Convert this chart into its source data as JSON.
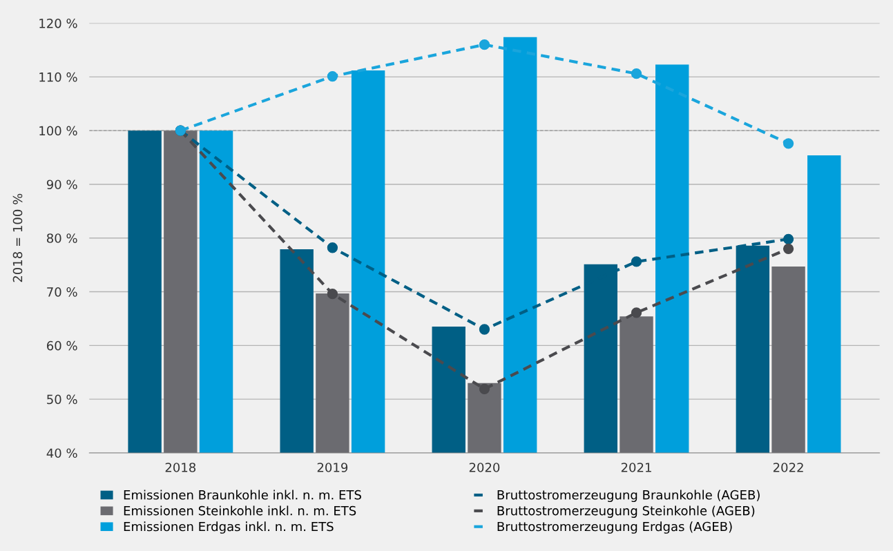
{
  "chart_data": {
    "type": "bar",
    "ylabel": "2018 = 100 %",
    "categories": [
      "2018",
      "2019",
      "2020",
      "2021",
      "2022"
    ],
    "series": [
      {
        "name": "Emissionen Braunkohle inkl. n. m. ETS",
        "color": "#005f85",
        "values": [
          100,
          77.9,
          63.5,
          75.1,
          78.6
        ]
      },
      {
        "name": "Emissionen Steinkohle inkl. n. m. ETS",
        "color": "#6b6b70",
        "values": [
          100,
          69.7,
          53,
          65.4,
          74.7
        ]
      },
      {
        "name": "Emissionen Erdgas inkl. n. m. ETS",
        "color": "#009fdc",
        "values": [
          100,
          111.2,
          117.4,
          112.3,
          95.4
        ]
      },
      {
        "name": "Bruttostromerzeugung Braunkohle (AGEB)",
        "type": "line",
        "color": "#005f85",
        "marker": "circle",
        "line_style": "dashed",
        "values": [
          100,
          78.2,
          63,
          75.6,
          79.8
        ]
      },
      {
        "name": "Bruttostromerzeugung Steinkohle (AGEB)",
        "type": "line",
        "color": "#4a4a4e",
        "marker": "circle",
        "line_style": "dashed",
        "values": [
          100,
          69.6,
          51.9,
          66.1,
          78
        ]
      },
      {
        "name": "Bruttostromerzeugung Erdgas (AGEB)",
        "type": "line",
        "color": "#1aa5dc",
        "marker": "circle",
        "line_style": "dashed",
        "values": [
          100,
          110.1,
          116,
          110.6,
          97.6
        ]
      }
    ],
    "ylim": [
      40,
      120
    ],
    "yticks": [
      {
        "value": 40,
        "label": "40 %"
      },
      {
        "value": 50,
        "label": "50 %"
      },
      {
        "value": 60,
        "label": "60 %"
      },
      {
        "value": 70,
        "label": "70 %"
      },
      {
        "value": 80,
        "label": "80 %"
      },
      {
        "value": 90,
        "label": "90 %"
      },
      {
        "value": 100,
        "label": "100 %"
      },
      {
        "value": 110,
        "label": "110 %"
      },
      {
        "value": 120,
        "label": "120 %"
      }
    ],
    "ref_lines": [
      {
        "axis": "y",
        "value": 100,
        "label": null,
        "color": "#999999",
        "line_style": "dashed"
      }
    ],
    "grid": "y",
    "legend": "bottom"
  }
}
